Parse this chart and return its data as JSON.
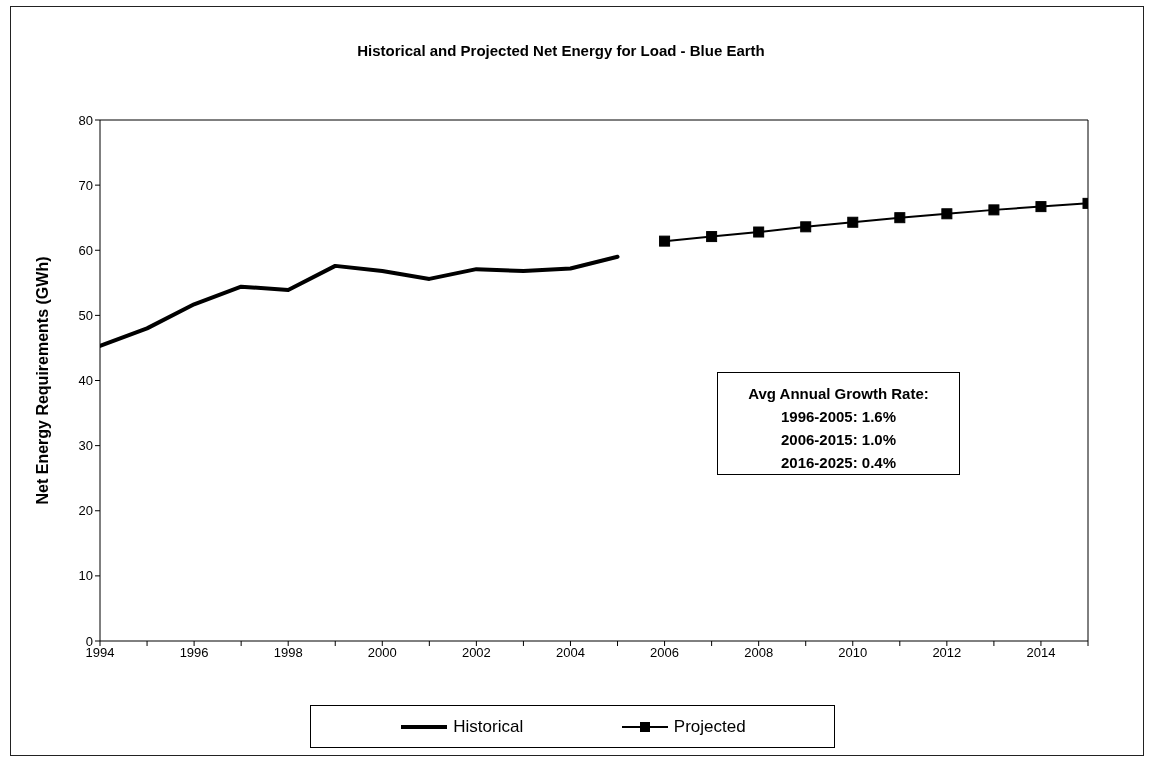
{
  "chart_data": {
    "type": "line",
    "title": "Historical and Projected Net Energy for Load - Blue Earth",
    "ylabel": "Net Energy Requirements (GWh)",
    "series": [
      {
        "name": "Historical",
        "color": "#000000",
        "marker": "none",
        "x": [
          1994,
          1995,
          1996,
          1997,
          1998,
          1999,
          2000,
          2001,
          2002,
          2003,
          2004,
          2005
        ],
        "values": [
          45.3,
          48.0,
          51.7,
          54.4,
          53.9,
          57.6,
          56.8,
          55.6,
          57.1,
          56.8,
          57.2,
          59.0
        ]
      },
      {
        "name": "Projected",
        "color": "#000000",
        "marker": "square",
        "x": [
          2006,
          2007,
          2008,
          2009,
          2010,
          2011,
          2012,
          2013,
          2014,
          2015
        ],
        "values": [
          61.4,
          62.1,
          62.8,
          63.6,
          64.3,
          65.0,
          65.6,
          66.2,
          66.7,
          67.2
        ]
      }
    ],
    "xlim": [
      1994,
      2015
    ],
    "xticks": [
      1994,
      {
        "value": 1995,
        "label": null
      },
      1996,
      {
        "value": 1997,
        "label": null
      },
      1998,
      {
        "value": 1999,
        "label": null
      },
      2000,
      {
        "value": 2001,
        "label": null
      },
      2002,
      {
        "value": 2003,
        "label": null
      },
      2004,
      {
        "value": 2005,
        "label": null
      },
      2006,
      {
        "value": 2007,
        "label": null
      },
      2008,
      {
        "value": 2009,
        "label": null
      },
      2010,
      {
        "value": 2011,
        "label": null
      },
      2012,
      {
        "value": 2013,
        "label": null
      },
      2014,
      {
        "value": 2015,
        "label": null
      }
    ],
    "ylim": [
      0,
      80
    ],
    "yticks": [
      0,
      10,
      20,
      30,
      40,
      50,
      60,
      70,
      80
    ],
    "annotations": [
      "Avg Annual Growth Rate:",
      "1996-2005: 1.6%",
      "2006-2015: 1.0%",
      "2016-2025: 0.4%"
    ],
    "legend": "bottom",
    "grid": false,
    "line_style": "solid"
  }
}
